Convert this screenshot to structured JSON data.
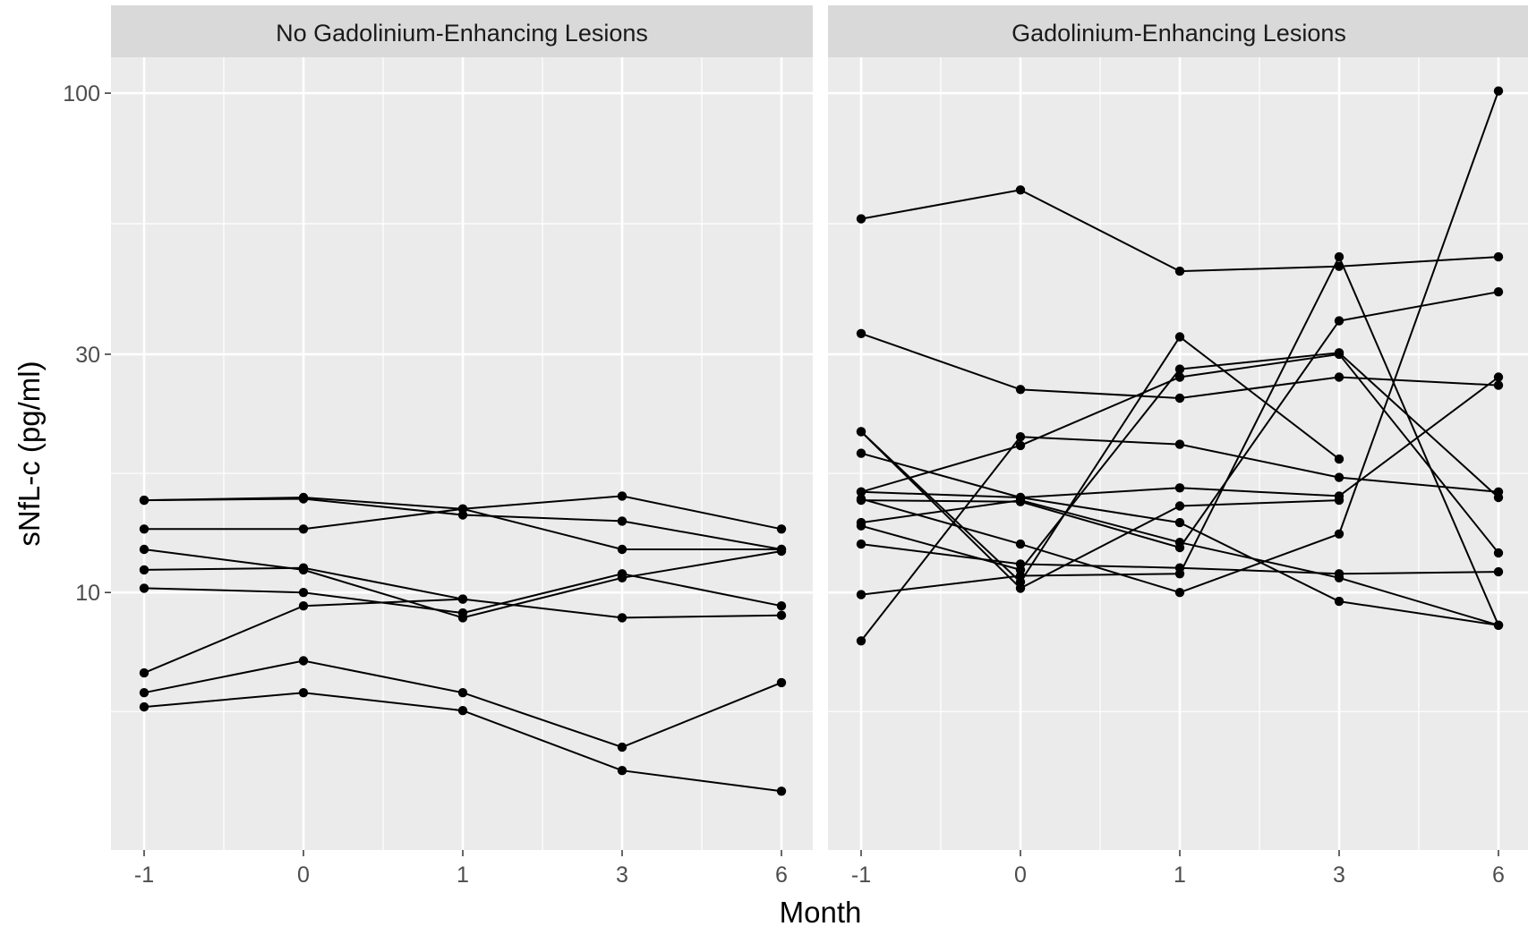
{
  "chart_data": {
    "type": "line",
    "xlabel": "Month",
    "ylabel": "sNfL-c (pg/ml)",
    "x": [
      "-1",
      "0",
      "1",
      "3",
      "6"
    ],
    "y_scale": "log",
    "ylim": [
      3.05,
      118
    ],
    "y_ticks": [
      {
        "value": 10,
        "label": "10"
      },
      {
        "value": 30,
        "label": "30"
      },
      {
        "value": 100,
        "label": "100"
      }
    ],
    "grid": true,
    "panels": [
      {
        "title": "No Gadolinium-Enhancing Lesions",
        "series": [
          {
            "values": [
              15.3,
              15.5,
              14.7,
              15.6,
              13.4
            ]
          },
          {
            "values": [
              15.3,
              15.4,
              14.3,
              13.9,
              12.2
            ]
          },
          {
            "values": [
              13.4,
              13.4,
              14.7,
              12.2,
              12.2
            ]
          },
          {
            "values": [
              12.2,
              11.1,
              8.9,
              10.7,
              12.1
            ]
          },
          {
            "values": [
              11.1,
              11.2,
              9.7,
              8.9,
              9.0
            ]
          },
          {
            "values": [
              10.2,
              10.0,
              9.1,
              10.9,
              9.4
            ]
          },
          {
            "values": [
              6.9,
              9.4,
              9.7
            ]
          },
          {
            "values": [
              6.3,
              7.3,
              6.3,
              4.9,
              6.6
            ]
          },
          {
            "values": [
              5.9,
              6.3,
              5.8,
              4.4,
              4.0
            ]
          }
        ]
      },
      {
        "title": "Gadolinium-Enhancing Lesions",
        "series": [
          {
            "values": [
              56,
              64,
              44,
              45,
              47
            ]
          },
          {
            "values": [
              33,
              25.5,
              24.5,
              27,
              26
            ]
          },
          {
            "values": [
              19,
              15.5,
              13.8,
              9.6,
              8.6
            ]
          },
          {
            "values": [
              15.9,
              15.5,
              16.2,
              15.6,
              27
            ]
          },
          {
            "values": [
              13.8,
              15.3,
              12.6,
              10.7,
              8.6
            ]
          },
          {
            "values": [
              12.5,
              11.4,
              11.2,
              10.9,
              11.0
            ]
          },
          {
            "values": [
              8.0,
              20.5,
              19.8,
              17.0,
              15.9
            ]
          },
          {
            "values": [
              15.3,
              15.2,
              12.3,
              35,
              40
            ]
          },
          {
            "values": [
              13.6,
              11.1,
              28,
              30.2,
              15.5
            ]
          },
          {
            "values": [
              15.9,
              19.7,
              27,
              30,
              12.0
            ]
          },
          {
            "values": [
              9.9,
              10.8,
              10.9,
              47,
              8.6
            ]
          },
          {
            "values": [
              21,
              10.2,
              14.9,
              15.3
            ]
          },
          {
            "values": [
              21,
              10.5,
              32.5,
              18.5
            ]
          },
          {
            "values": [
              15.4,
              12.5,
              10.0,
              13.1,
              101
            ]
          }
        ]
      }
    ]
  }
}
